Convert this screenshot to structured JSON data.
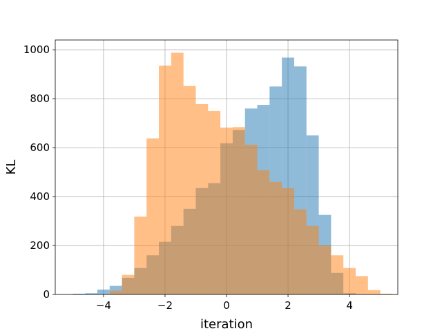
{
  "chart_data": {
    "type": "histogram",
    "title": "",
    "xlabel": "iteration",
    "ylabel": "KL",
    "xlim": [
      -5.57,
      5.57
    ],
    "ylim": [
      0,
      1040
    ],
    "grid": true,
    "xticks": [
      -4,
      -2,
      0,
      2,
      4
    ],
    "xtick_labels": [
      "−4",
      "−2",
      "0",
      "2",
      "4"
    ],
    "yticks": [
      0,
      200,
      400,
      600,
      800,
      1000
    ],
    "ytick_labels": [
      "0",
      "200",
      "400",
      "600",
      "800",
      "1000"
    ],
    "series": [
      {
        "color": "#1f77b4",
        "alpha": 0.5,
        "bins": [
          {
            "x0": -5.0,
            "x1": -4.6,
            "count": 3
          },
          {
            "x0": -4.6,
            "x1": -4.2,
            "count": 5
          },
          {
            "x0": -4.2,
            "x1": -3.8,
            "count": 20
          },
          {
            "x0": -3.8,
            "x1": -3.4,
            "count": 35
          },
          {
            "x0": -3.4,
            "x1": -3.0,
            "count": 68
          },
          {
            "x0": -3.0,
            "x1": -2.6,
            "count": 108
          },
          {
            "x0": -2.6,
            "x1": -2.2,
            "count": 160
          },
          {
            "x0": -2.2,
            "x1": -1.8,
            "count": 215
          },
          {
            "x0": -1.8,
            "x1": -1.4,
            "count": 280
          },
          {
            "x0": -1.4,
            "x1": -1.0,
            "count": 350
          },
          {
            "x0": -1.0,
            "x1": -0.6,
            "count": 435
          },
          {
            "x0": -0.6,
            "x1": -0.2,
            "count": 455
          },
          {
            "x0": -0.2,
            "x1": 0.2,
            "count": 618
          },
          {
            "x0": 0.2,
            "x1": 0.6,
            "count": 672
          },
          {
            "x0": 0.6,
            "x1": 1.0,
            "count": 760
          },
          {
            "x0": 1.0,
            "x1": 1.4,
            "count": 775
          },
          {
            "x0": 1.4,
            "x1": 1.8,
            "count": 850
          },
          {
            "x0": 1.8,
            "x1": 2.2,
            "count": 968
          },
          {
            "x0": 2.2,
            "x1": 2.6,
            "count": 932
          },
          {
            "x0": 2.6,
            "x1": 3.0,
            "count": 650
          },
          {
            "x0": 3.0,
            "x1": 3.4,
            "count": 325
          },
          {
            "x0": 3.4,
            "x1": 3.8,
            "count": 88
          },
          {
            "x0": 3.8,
            "x1": 4.2,
            "count": 5
          }
        ]
      },
      {
        "color": "#ff7f0e",
        "alpha": 0.5,
        "bins": [
          {
            "x0": -3.8,
            "x1": -3.4,
            "count": 15
          },
          {
            "x0": -3.4,
            "x1": -3.0,
            "count": 80
          },
          {
            "x0": -3.0,
            "x1": -2.6,
            "count": 318
          },
          {
            "x0": -2.6,
            "x1": -2.2,
            "count": 638
          },
          {
            "x0": -2.2,
            "x1": -1.8,
            "count": 935
          },
          {
            "x0": -1.8,
            "x1": -1.4,
            "count": 988
          },
          {
            "x0": -1.4,
            "x1": -1.0,
            "count": 852
          },
          {
            "x0": -1.0,
            "x1": -0.6,
            "count": 778
          },
          {
            "x0": -0.6,
            "x1": -0.2,
            "count": 750
          },
          {
            "x0": -0.2,
            "x1": 0.2,
            "count": 682
          },
          {
            "x0": 0.2,
            "x1": 0.6,
            "count": 684
          },
          {
            "x0": 0.6,
            "x1": 1.0,
            "count": 612
          },
          {
            "x0": 1.0,
            "x1": 1.4,
            "count": 508
          },
          {
            "x0": 1.4,
            "x1": 1.8,
            "count": 460
          },
          {
            "x0": 1.8,
            "x1": 2.2,
            "count": 435
          },
          {
            "x0": 2.2,
            "x1": 2.6,
            "count": 348
          },
          {
            "x0": 2.6,
            "x1": 3.0,
            "count": 280
          },
          {
            "x0": 3.0,
            "x1": 3.4,
            "count": 200
          },
          {
            "x0": 3.4,
            "x1": 3.8,
            "count": 160
          },
          {
            "x0": 3.8,
            "x1": 4.2,
            "count": 108
          },
          {
            "x0": 4.2,
            "x1": 4.6,
            "count": 75
          },
          {
            "x0": 4.6,
            "x1": 5.0,
            "count": 18
          },
          {
            "x0": 5.0,
            "x1": 5.4,
            "count": 3
          }
        ]
      }
    ]
  }
}
